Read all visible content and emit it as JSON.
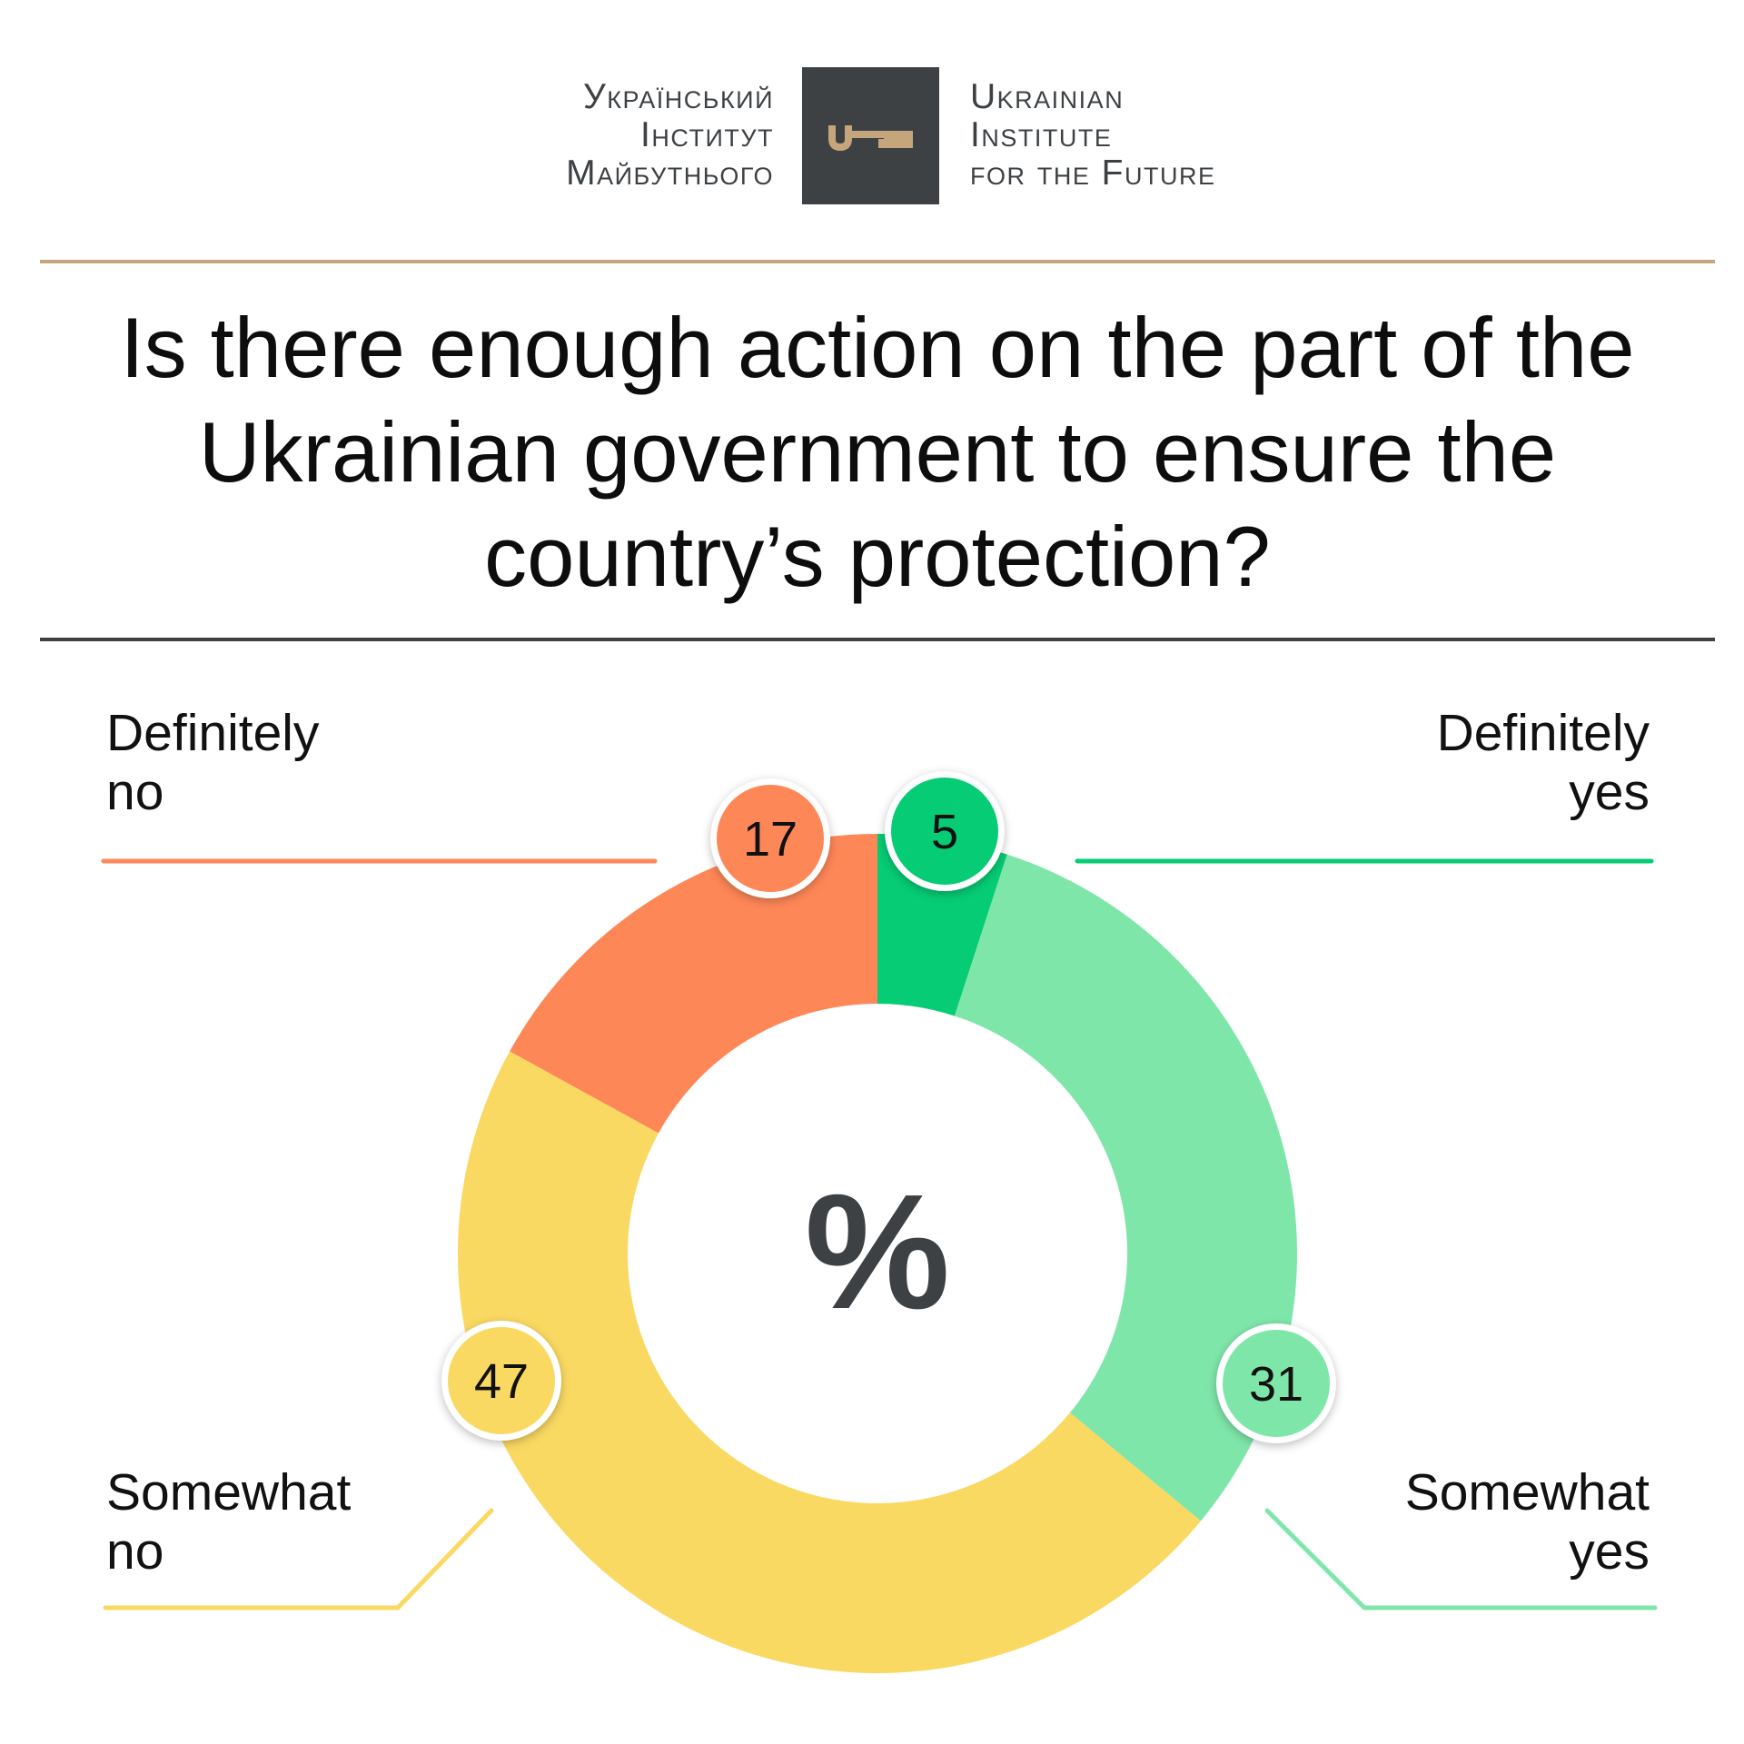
{
  "header": {
    "org_name_ua": [
      "Український",
      "Інститут",
      "Майбутнього"
    ],
    "org_name_en": [
      "Ukrainian",
      "Institute",
      "for the Future"
    ],
    "logo_icon": "key-icon",
    "accent_color": "#c5a67c",
    "dark_color": "#3d4144"
  },
  "chart_data": {
    "type": "pie",
    "style": "donut",
    "title": "Is there enough action on the part of the Ukrainian government to ensure the country’s protection?",
    "center_label": "%",
    "categories": [
      "Definitely yes",
      "Somewhat yes",
      "Somewhat no",
      "Definitely no"
    ],
    "category_label_lines": [
      [
        "Definitely",
        "yes"
      ],
      [
        "Somewhat",
        "yes"
      ],
      [
        "Somewhat",
        "no"
      ],
      [
        "Definitely",
        "no"
      ]
    ],
    "values": [
      5,
      31,
      47,
      17
    ],
    "colors": [
      "#06cc75",
      "#7fe6aa",
      "#fad962",
      "#fe8758"
    ],
    "unit": "%",
    "order": "clockwise from top"
  }
}
